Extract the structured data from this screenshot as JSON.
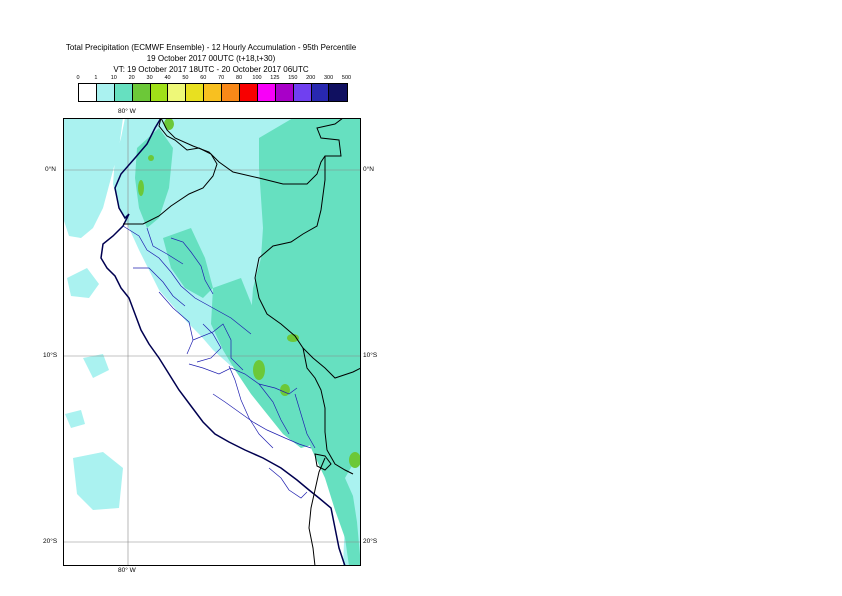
{
  "title": {
    "line1": "Total Precipitation (ECMWF Ensemble) - 12 Hourly Accumulation - 95th Percentile",
    "line2": "19 October 2017 00UTC (t+18,t+30)",
    "line3": "VT: 19 October 2017 18UTC - 20 October 2017 06UTC"
  },
  "legend": {
    "thresholds": [
      "0",
      "1",
      "10",
      "20",
      "30",
      "40",
      "50",
      "60",
      "70",
      "80",
      "100",
      "125",
      "150",
      "200",
      "300",
      "500"
    ],
    "colors": [
      "#ffffff",
      "#aaf2f0",
      "#66e0c0",
      "#6cc838",
      "#a0e018",
      "#eef878",
      "#e8e020",
      "#f8c020",
      "#f88818",
      "#f80000",
      "#f800f8",
      "#a800c8",
      "#7040f0",
      "#2828b0",
      "#101060"
    ]
  },
  "axes": {
    "lon_top": "80° W",
    "lon_bottom": "80° W",
    "lat_left": [
      "0°N",
      "10°S",
      "20°S"
    ],
    "lat_right": [
      "0°N",
      "10°S",
      "20°S"
    ]
  }
}
